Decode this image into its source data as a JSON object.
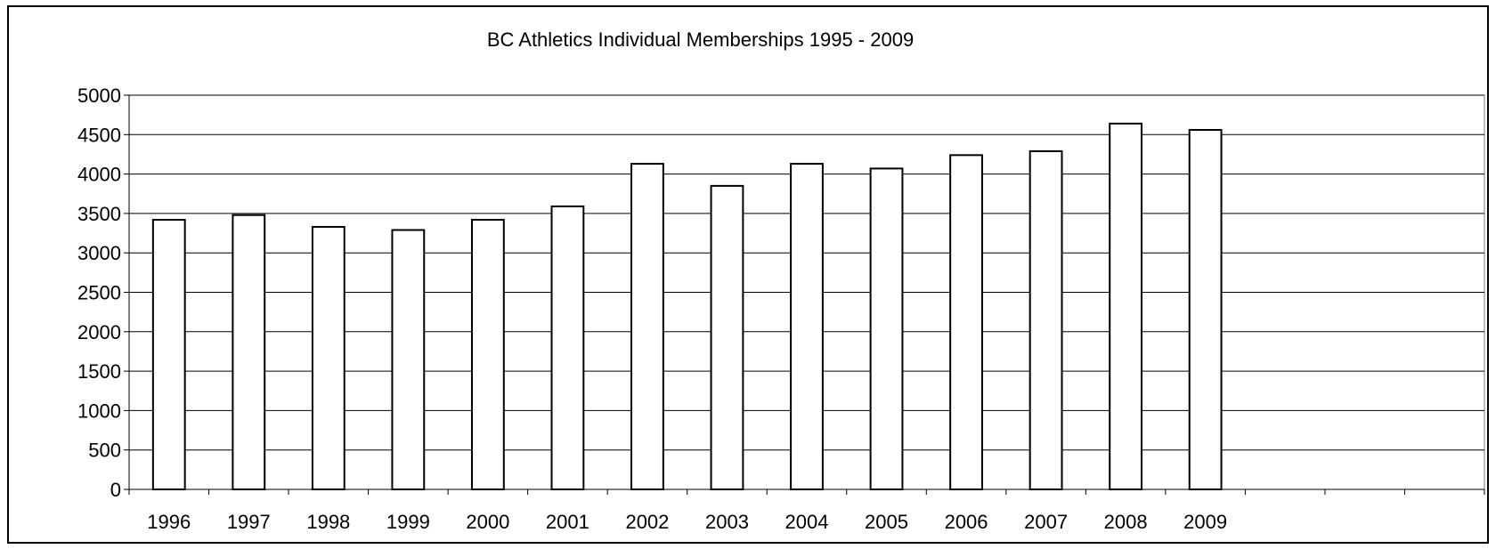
{
  "chart_data": {
    "type": "bar",
    "title": "BC Athletics Individual Memberships 1995 - 2009",
    "xlabel": "",
    "ylabel": "",
    "categories": [
      "1996",
      "1997",
      "1998",
      "1999",
      "2000",
      "2001",
      "2002",
      "2003",
      "2004",
      "2005",
      "2006",
      "2007",
      "2008",
      "2009",
      "",
      "",
      ""
    ],
    "values": [
      3420,
      3480,
      3330,
      3290,
      3420,
      3590,
      4130,
      3850,
      4130,
      4070,
      4240,
      4290,
      4640,
      4560,
      null,
      null,
      null
    ],
    "ylim": [
      0,
      5000
    ],
    "yticks": [
      "0",
      "500",
      "1000",
      "1500",
      "2000",
      "2500",
      "3000",
      "3500",
      "4000",
      "4500",
      "5000"
    ],
    "grid": "horizontal",
    "legend": "none",
    "bar_fill": "#ffffff",
    "bar_stroke": "#000000"
  }
}
